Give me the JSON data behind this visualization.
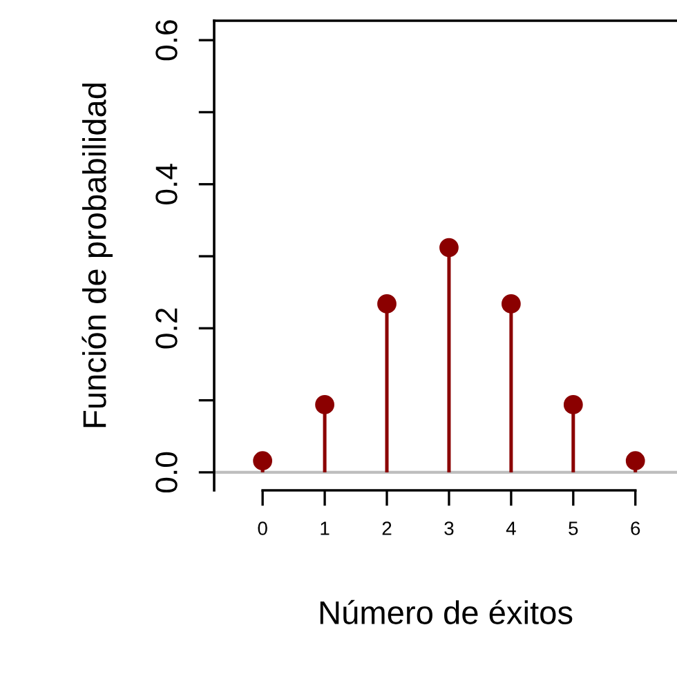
{
  "chart_data": {
    "type": "lollipop",
    "xlabel": "Número de éxitos",
    "ylabel": "Función de probabilidad",
    "x": [
      0,
      1,
      2,
      3,
      4,
      5,
      6
    ],
    "series": [
      {
        "color": "#8b0000",
        "values": [
          0.016,
          0.094,
          0.234,
          0.312,
          0.234,
          0.094,
          0.016
        ]
      }
    ],
    "xlim": [
      -0.78,
      6.67
    ],
    "xticks": [
      0,
      1,
      2,
      3,
      4,
      5,
      6
    ],
    "ylim": [
      -0.025,
      0.627
    ],
    "yticks": [
      {
        "value": 0,
        "label": "0.0"
      },
      {
        "value": 0.1,
        "label": null
      },
      {
        "value": 0.2,
        "label": "0.2"
      },
      {
        "value": 0.3,
        "label": null
      },
      {
        "value": 0.4,
        "label": "0.4"
      },
      {
        "value": 0.5,
        "label": null
      },
      {
        "value": 0.6,
        "label": "0.6"
      }
    ],
    "ref_lines": [
      {
        "axis": "y",
        "value": 0,
        "color": "#bebebe"
      }
    ],
    "marker": "circle",
    "grid": false,
    "legend": false
  }
}
